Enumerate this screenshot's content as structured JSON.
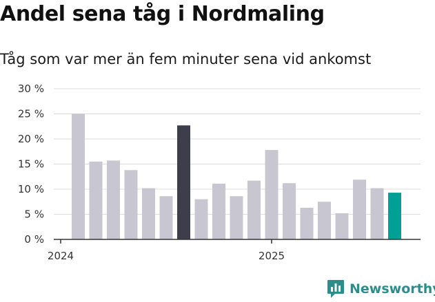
{
  "title": "Andel sena tåg i Nordmaling",
  "subtitle": "Tåg som var mer än fem minuter sena vid ankomst",
  "brand": {
    "name": "Newsworthy",
    "icon": "newsworthy-logo-icon",
    "color": "#2b8e8c"
  },
  "chart_data": {
    "type": "bar",
    "ylim": [
      0,
      30
    ],
    "yticks": [
      "0 %",
      "5 %",
      "10 %",
      "15 %",
      "20 %",
      "25 %",
      "30 %"
    ],
    "ytick_values": [
      0,
      5,
      10,
      15,
      20,
      25,
      30
    ],
    "xticks": [
      {
        "label": "2024",
        "index": 0
      },
      {
        "label": "2025",
        "index": 12
      }
    ],
    "values": [
      25.0,
      15.5,
      15.7,
      13.8,
      10.2,
      8.6,
      22.7,
      8.0,
      11.1,
      8.6,
      11.7,
      17.8,
      11.2,
      6.3,
      7.5,
      5.2,
      11.9,
      10.2,
      9.3
    ],
    "colors": {
      "default": "#c8c7d1",
      "highlight": "#3e3d4b",
      "latest": "#00a096"
    },
    "highlight_index": 6,
    "latest_index": 18,
    "grid": true
  }
}
